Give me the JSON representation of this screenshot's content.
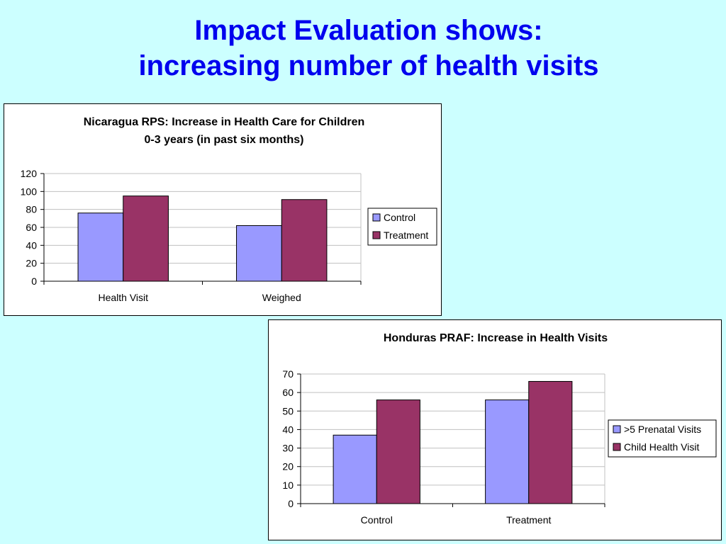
{
  "slide": {
    "title_line1": "Impact Evaluation shows:",
    "title_line2": "increasing number of health visits",
    "title_color": "#0000ee",
    "background": "#ccffff"
  },
  "chart_data": [
    {
      "type": "bar",
      "title_line1": "Nicaragua RPS: Increase in Health Care for Children",
      "title_line2": "0-3 years (in past six months)",
      "categories": [
        "Health Visit",
        "Weighed"
      ],
      "series": [
        {
          "name": "Control",
          "values": [
            76,
            62
          ],
          "color": "#9999ff"
        },
        {
          "name": "Treatment",
          "values": [
            95,
            91
          ],
          "color": "#993366"
        }
      ],
      "ylim": [
        0,
        120
      ],
      "yticks": [
        0,
        20,
        40,
        60,
        80,
        100,
        120
      ],
      "grid": true,
      "legend": "right"
    },
    {
      "type": "bar",
      "title_line1": "Honduras PRAF: Increase in Health Visits",
      "title_line2": "",
      "categories": [
        "Control",
        "Treatment"
      ],
      "series": [
        {
          "name": ">5 Prenatal Visits",
          "values": [
            37,
            56
          ],
          "color": "#9999ff"
        },
        {
          "name": "Child Health Visit",
          "values": [
            56,
            66
          ],
          "color": "#993366"
        }
      ],
      "ylim": [
        0,
        70
      ],
      "yticks": [
        0,
        10,
        20,
        30,
        40,
        50,
        60,
        70
      ],
      "grid": true,
      "legend": "right"
    }
  ]
}
